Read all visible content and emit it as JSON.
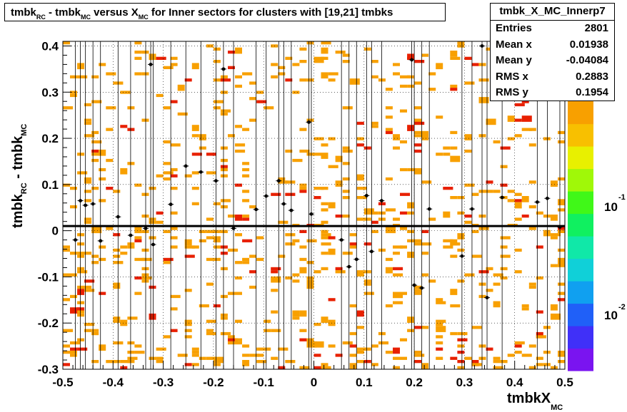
{
  "title": {
    "prefix": "tmbk",
    "sub1": "RC",
    "mid1": " - tmbk",
    "sub2": "MC",
    "mid2": " versus X",
    "sub3": "MC",
    "suffix": " for Inner sectors for clusters with [19,21] tmbks"
  },
  "stats": {
    "name": "tmbk_X_MC_Innerp7",
    "rows": [
      {
        "label": "Entries",
        "value": "2801"
      },
      {
        "label": "Mean x",
        "value": "0.01938"
      },
      {
        "label": "Mean y",
        "value": "-0.04084"
      },
      {
        "label": "RMS x",
        "value": "0.2883"
      },
      {
        "label": "RMS y",
        "value": "0.1954"
      }
    ]
  },
  "axes": {
    "y_main": "tmbk",
    "y_sub1": "RC",
    "y_mid": " - tmbk",
    "y_sub2": "MC",
    "x_main": "tmbkX",
    "x_sub": "MC"
  },
  "chart_data": {
    "type": "heatmap",
    "xlim": [
      -0.5,
      0.5
    ],
    "ylim": [
      -0.3,
      0.41
    ],
    "x_ticks": [
      "-0.5",
      "-0.4",
      "-0.3",
      "-0.2",
      "-0.1",
      "0",
      "0.1",
      "0.2",
      "0.3",
      "0.4",
      "0.5"
    ],
    "y_ticks": [
      "-0.3",
      "-0.2",
      "-0.1",
      "0",
      "0.1",
      "0.2",
      "0.3",
      "0.4"
    ],
    "palette_labels": [
      "10",
      "-1",
      "10",
      "-2"
    ],
    "grid": true,
    "colors": {
      "orange": "#f8a000",
      "red": "#e82000",
      "marker": "#000000"
    },
    "fit_line_y": 0.01,
    "profile_points": [
      {
        "x": -0.475,
        "y": -0.02
      },
      {
        "x": -0.465,
        "y": 0.065
      },
      {
        "x": -0.455,
        "y": 0.055
      },
      {
        "x": -0.44,
        "y": 0.058
      },
      {
        "x": -0.425,
        "y": -0.022
      },
      {
        "x": -0.39,
        "y": 0.03
      },
      {
        "x": -0.365,
        "y": -0.01
      },
      {
        "x": -0.335,
        "y": 0.005
      },
      {
        "x": -0.325,
        "y": 0.36
      },
      {
        "x": -0.32,
        "y": -0.03
      },
      {
        "x": -0.285,
        "y": 0.057
      },
      {
        "x": -0.255,
        "y": 0.14
      },
      {
        "x": -0.225,
        "y": 0.127
      },
      {
        "x": -0.195,
        "y": 0.108
      },
      {
        "x": -0.18,
        "y": 0.35
      },
      {
        "x": -0.16,
        "y": 0.005
      },
      {
        "x": -0.115,
        "y": 0.046
      },
      {
        "x": -0.095,
        "y": 0.075
      },
      {
        "x": -0.07,
        "y": 0.108
      },
      {
        "x": -0.06,
        "y": 0.058
      },
      {
        "x": -0.045,
        "y": 0.044
      },
      {
        "x": -0.01,
        "y": 0.235
      },
      {
        "x": -0.005,
        "y": 0.036
      },
      {
        "x": 0.055,
        "y": -0.02
      },
      {
        "x": 0.07,
        "y": -0.078
      },
      {
        "x": 0.085,
        "y": -0.062
      },
      {
        "x": 0.105,
        "y": 0.076
      },
      {
        "x": 0.115,
        "y": -0.045
      },
      {
        "x": 0.135,
        "y": 0.065
      },
      {
        "x": 0.195,
        "y": 0.37
      },
      {
        "x": 0.2,
        "y": -0.118
      },
      {
        "x": 0.215,
        "y": -0.124
      },
      {
        "x": 0.23,
        "y": 0.047
      },
      {
        "x": 0.295,
        "y": -0.055
      },
      {
        "x": 0.315,
        "y": 0.047
      },
      {
        "x": 0.335,
        "y": 0.4
      },
      {
        "x": 0.345,
        "y": -0.145
      },
      {
        "x": 0.375,
        "y": 0.072
      },
      {
        "x": 0.445,
        "y": 0.062
      },
      {
        "x": 0.465,
        "y": 0.07
      },
      {
        "x": 0.49,
        "y": 0.008
      }
    ]
  }
}
